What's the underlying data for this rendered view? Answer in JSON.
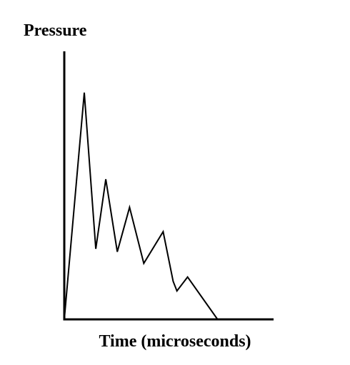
{
  "chart_data": {
    "type": "line",
    "title": "",
    "xlabel": "Time (microseconds)",
    "ylabel": "Pressure",
    "grid": false,
    "legend": "none",
    "xlim": [
      0,
      100
    ],
    "ylim": [
      0,
      100
    ],
    "line_color": "#000000",
    "series": [
      {
        "x": [
          0,
          9.6,
          15.1,
          19.9,
          25.4,
          31.3,
          38.1,
          47.4,
          52.2,
          54.0,
          59.1,
          73.5
        ],
        "y": [
          0,
          84.6,
          26.3,
          52.3,
          25.2,
          41.8,
          20.9,
          32.7,
          14.2,
          10.6,
          15.8,
          0
        ]
      }
    ]
  }
}
